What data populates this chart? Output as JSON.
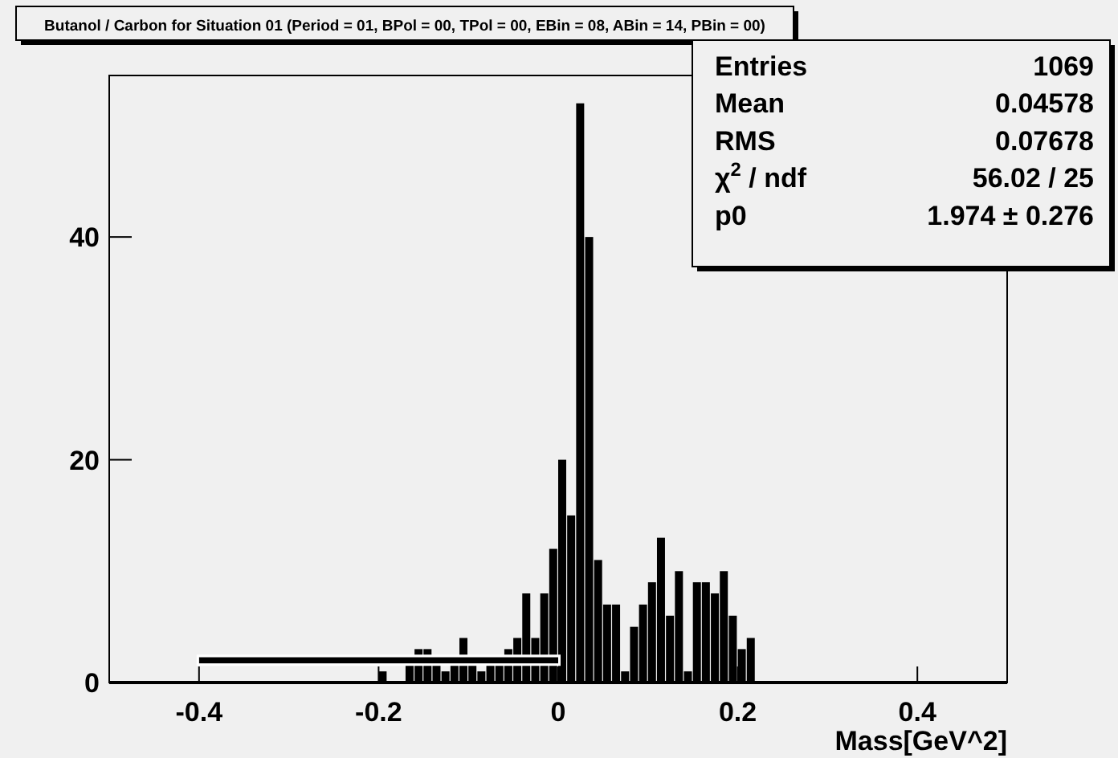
{
  "chart_data": {
    "type": "histogram",
    "title": "Butanol / Carbon for Situation 01 (Period = 01, BPol = 00, TPol = 00, EBin = 08, ABin = 14, PBin = 00)",
    "xlabel": "Mass[GeV^2]",
    "bins": [
      -0.2,
      -0.19,
      -0.18,
      -0.17,
      -0.16,
      -0.15,
      -0.14,
      -0.13,
      -0.12,
      -0.11,
      -0.1,
      -0.09,
      -0.08,
      -0.07,
      -0.06,
      -0.05,
      -0.04,
      -0.03,
      -0.02,
      -0.01,
      0,
      0.01,
      0.02,
      0.03,
      0.04,
      0.05,
      0.06,
      0.07,
      0.08,
      0.09,
      0.1,
      0.11,
      0.12,
      0.13,
      0.14,
      0.15,
      0.16,
      0.17,
      0.18,
      0.19,
      0.2,
      0.21,
      0.22
    ],
    "values": [
      1,
      0,
      0,
      2,
      3,
      3,
      2,
      1,
      2,
      4,
      2,
      1,
      2,
      2,
      3,
      4,
      8,
      4,
      8,
      12,
      20,
      15,
      52,
      40,
      11,
      7,
      7,
      1,
      5,
      7,
      9,
      13,
      6,
      10,
      1,
      9,
      9,
      8,
      10,
      6,
      3,
      4
    ],
    "color": "#000000",
    "series": [
      {
        "type": "line",
        "x": [
          -0.4,
          0
        ],
        "values": [
          2,
          2
        ],
        "color": "#000000"
      }
    ],
    "xlim": [
      -0.5,
      0.5
    ],
    "xticks": [
      -0.4,
      -0.2,
      {
        "value": 0,
        "label": "0"
      },
      0.2,
      0.4
    ],
    "ylim": [
      0,
      54.5
    ],
    "yticks": [
      0,
      20,
      40
    ],
    "annotations": [
      "Entries",
      "1069",
      "Mean",
      "0.04578",
      "RMS",
      "0.07678",
      "χ$^{2}$ / ndf",
      "56.02 / 25",
      "p0",
      "1.974 ± 0.276"
    ],
    "grid": false
  }
}
